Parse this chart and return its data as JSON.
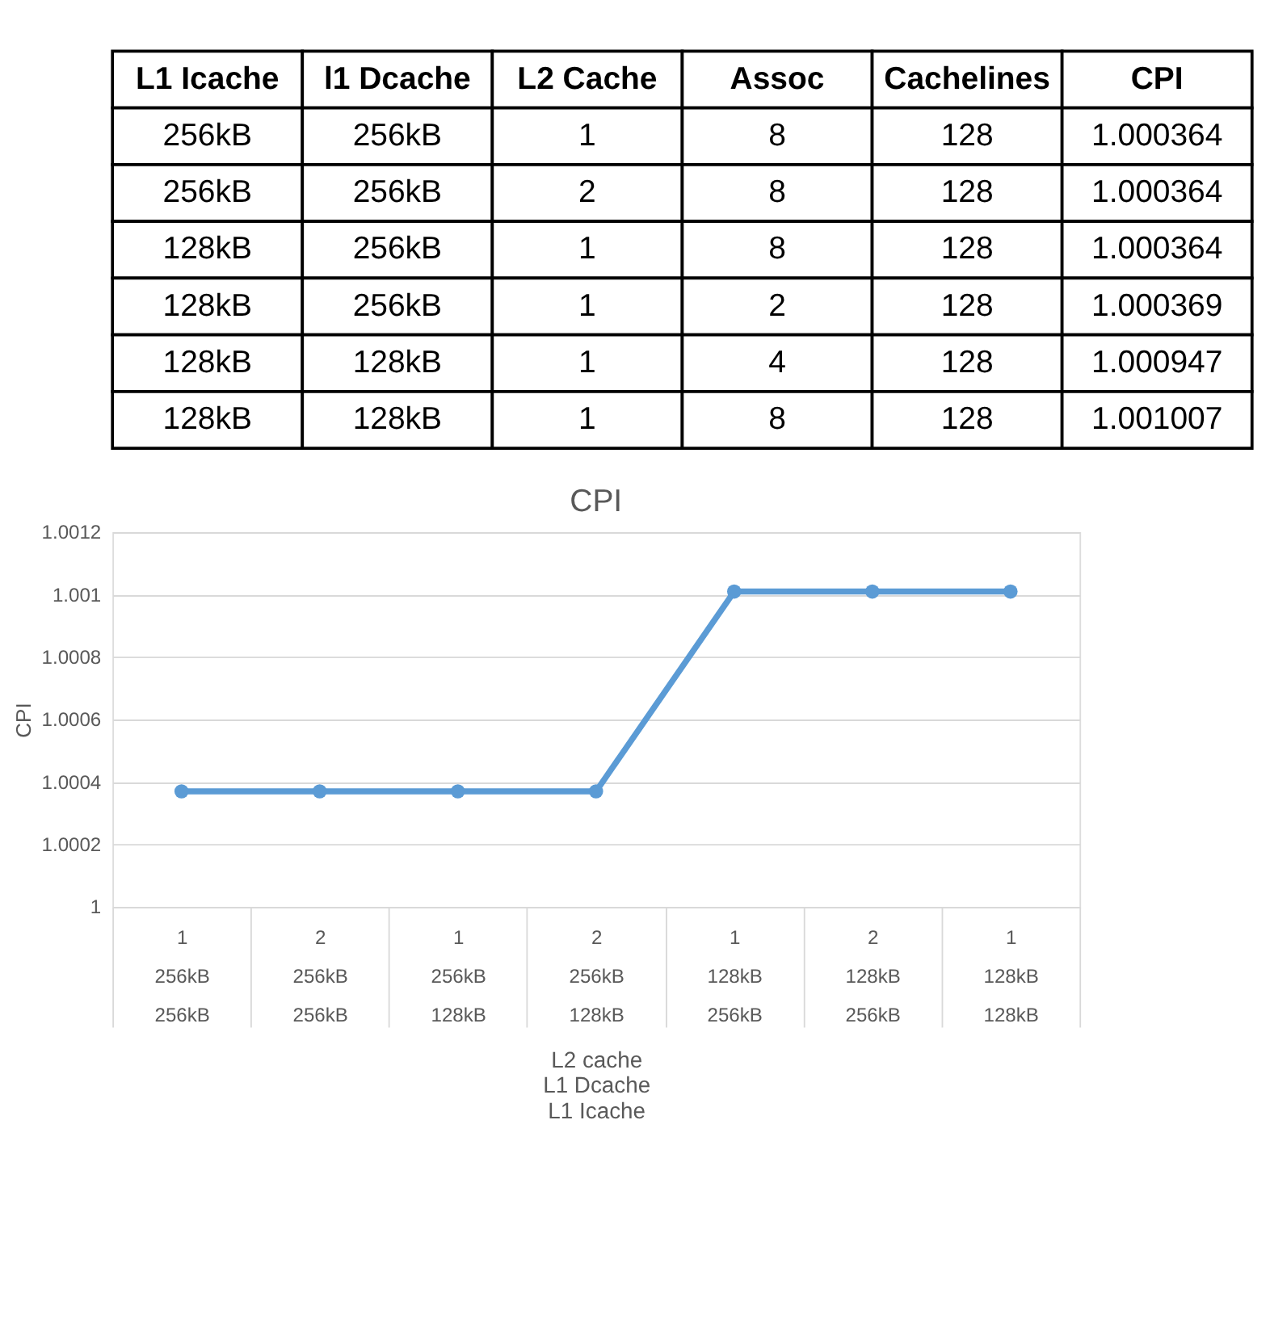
{
  "chart_data": [
    {
      "type": "other",
      "categories": [
        "L1 Icache",
        "l1 Dcache",
        "L2 Cache",
        "Assoc",
        "Cachelines",
        "CPI"
      ],
      "cell_labels": [
        [
          "256kB",
          "256kB",
          "1",
          "8",
          "128",
          "1.000364"
        ],
        [
          "256kB",
          "256kB",
          "2",
          "8",
          "128",
          "1.000364"
        ],
        [
          "128kB",
          "256kB",
          "1",
          "8",
          "128",
          "1.000364"
        ],
        [
          "128kB",
          "256kB",
          "1",
          "2",
          "128",
          "1.000369"
        ],
        [
          "128kB",
          "128kB",
          "1",
          "4",
          "128",
          "1.000947"
        ],
        [
          "128kB",
          "128kB",
          "1",
          "8",
          "128",
          "1.001007"
        ]
      ]
    },
    {
      "type": "line",
      "title": "CPI",
      "xlabel": "L2 cache\nL1 Dcache\nL1 Icache",
      "ylabel": "CPI",
      "categories": [
        "1\n256kB\n256kB",
        "2\n256kB\n256kB",
        "1\n256kB\n128kB",
        "2\n256kB\n128kB",
        "1\n128kB\n256kB",
        "2\n128kB\n256kB",
        "1\n128kB\n128kB"
      ],
      "series": [
        {
          "color": "#5b9bd5",
          "values": [
            1.00037,
            1.00037,
            1.00037,
            1.00037,
            1.00101,
            1.00101,
            1.00101
          ]
        }
      ],
      "ylim": [
        1,
        1.0012
      ],
      "yticks": [
        1,
        1.0002,
        1.0004,
        1.0006,
        1.0008,
        1.001,
        1.0012
      ],
      "grid": "y",
      "marker": "circle",
      "line_style": "solid",
      "legend": false
    }
  ]
}
